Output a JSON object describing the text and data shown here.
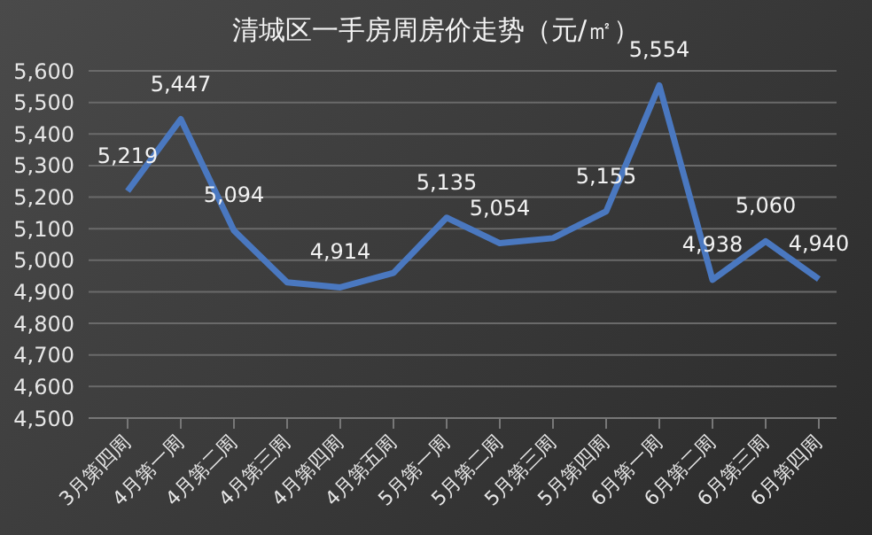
{
  "chart_data": {
    "type": "line",
    "title": "清城区一手房周房价走势（元/㎡）",
    "categories": [
      "3月第四周",
      "4月第一周",
      "4月第二周",
      "4月第三周",
      "4月第四周",
      "4月第五周",
      "5月第一周",
      "5月第二周",
      "5月第三周",
      "5月第四周",
      "6月第一周",
      "6月第二周",
      "6月第三周",
      "6月第四周"
    ],
    "series": [
      {
        "color": "#4a78c0",
        "values": [
          5219,
          5447,
          5094,
          4930,
          4914,
          4960,
          5135,
          5054,
          5070,
          5155,
          5554,
          4938,
          5060,
          4940
        ],
        "value_labels": [
          "5,219",
          "5,447",
          "5,094",
          null,
          "4,914",
          null,
          "5,135",
          "5,054",
          null,
          "5,155",
          "5,554",
          "4,938",
          "5,060",
          "4,940"
        ]
      }
    ],
    "ylim": [
      4500,
      5600
    ],
    "yticks": [
      {
        "value": 4500,
        "label": "4,500"
      },
      {
        "value": 4600,
        "label": "4,600"
      },
      {
        "value": 4700,
        "label": "4,700"
      },
      {
        "value": 4800,
        "label": "4,800"
      },
      {
        "value": 4900,
        "label": "4,900"
      },
      {
        "value": 5000,
        "label": "5,000"
      },
      {
        "value": 5100,
        "label": "5,100"
      },
      {
        "value": 5200,
        "label": "5,200"
      },
      {
        "value": 5300,
        "label": "5,300"
      },
      {
        "value": 5400,
        "label": "5,400"
      },
      {
        "value": 5500,
        "label": "5,500"
      },
      {
        "value": 5600,
        "label": "5,600"
      }
    ],
    "grid": "y",
    "marker": "none",
    "line_style": "solid"
  }
}
